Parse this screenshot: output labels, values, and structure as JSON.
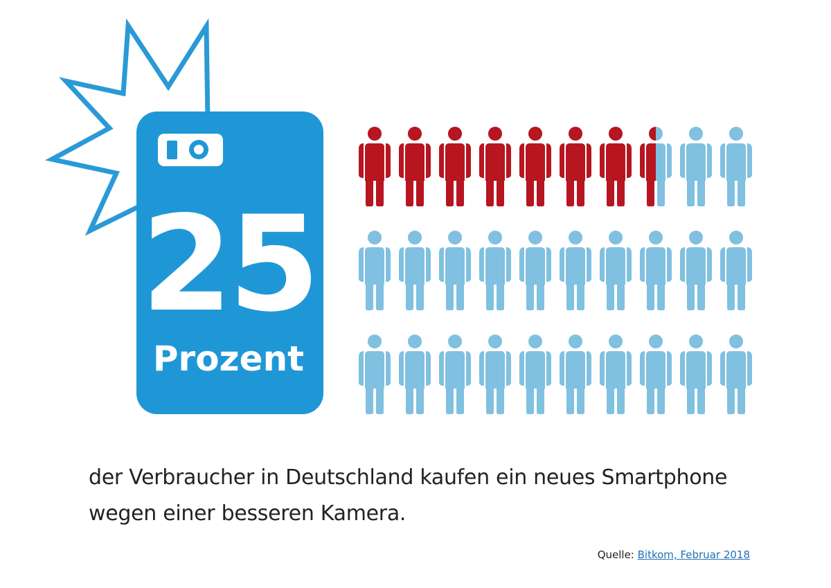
{
  "chart_data": {
    "type": "pictogram",
    "value": 25,
    "ylim": [
      0,
      100
    ],
    "unit_label": "Prozent",
    "caption": "der Verbraucher in Deutschland kaufen ein neues Smartphone wegen einer besseren Kamera.",
    "source_label": "Quelle:",
    "source": "Bitkom, Februar 2018",
    "icons": 30,
    "columns": 10,
    "color": "#b7151f",
    "rest_color": "#80c0e0",
    "phone_color": "#1f97d7"
  }
}
